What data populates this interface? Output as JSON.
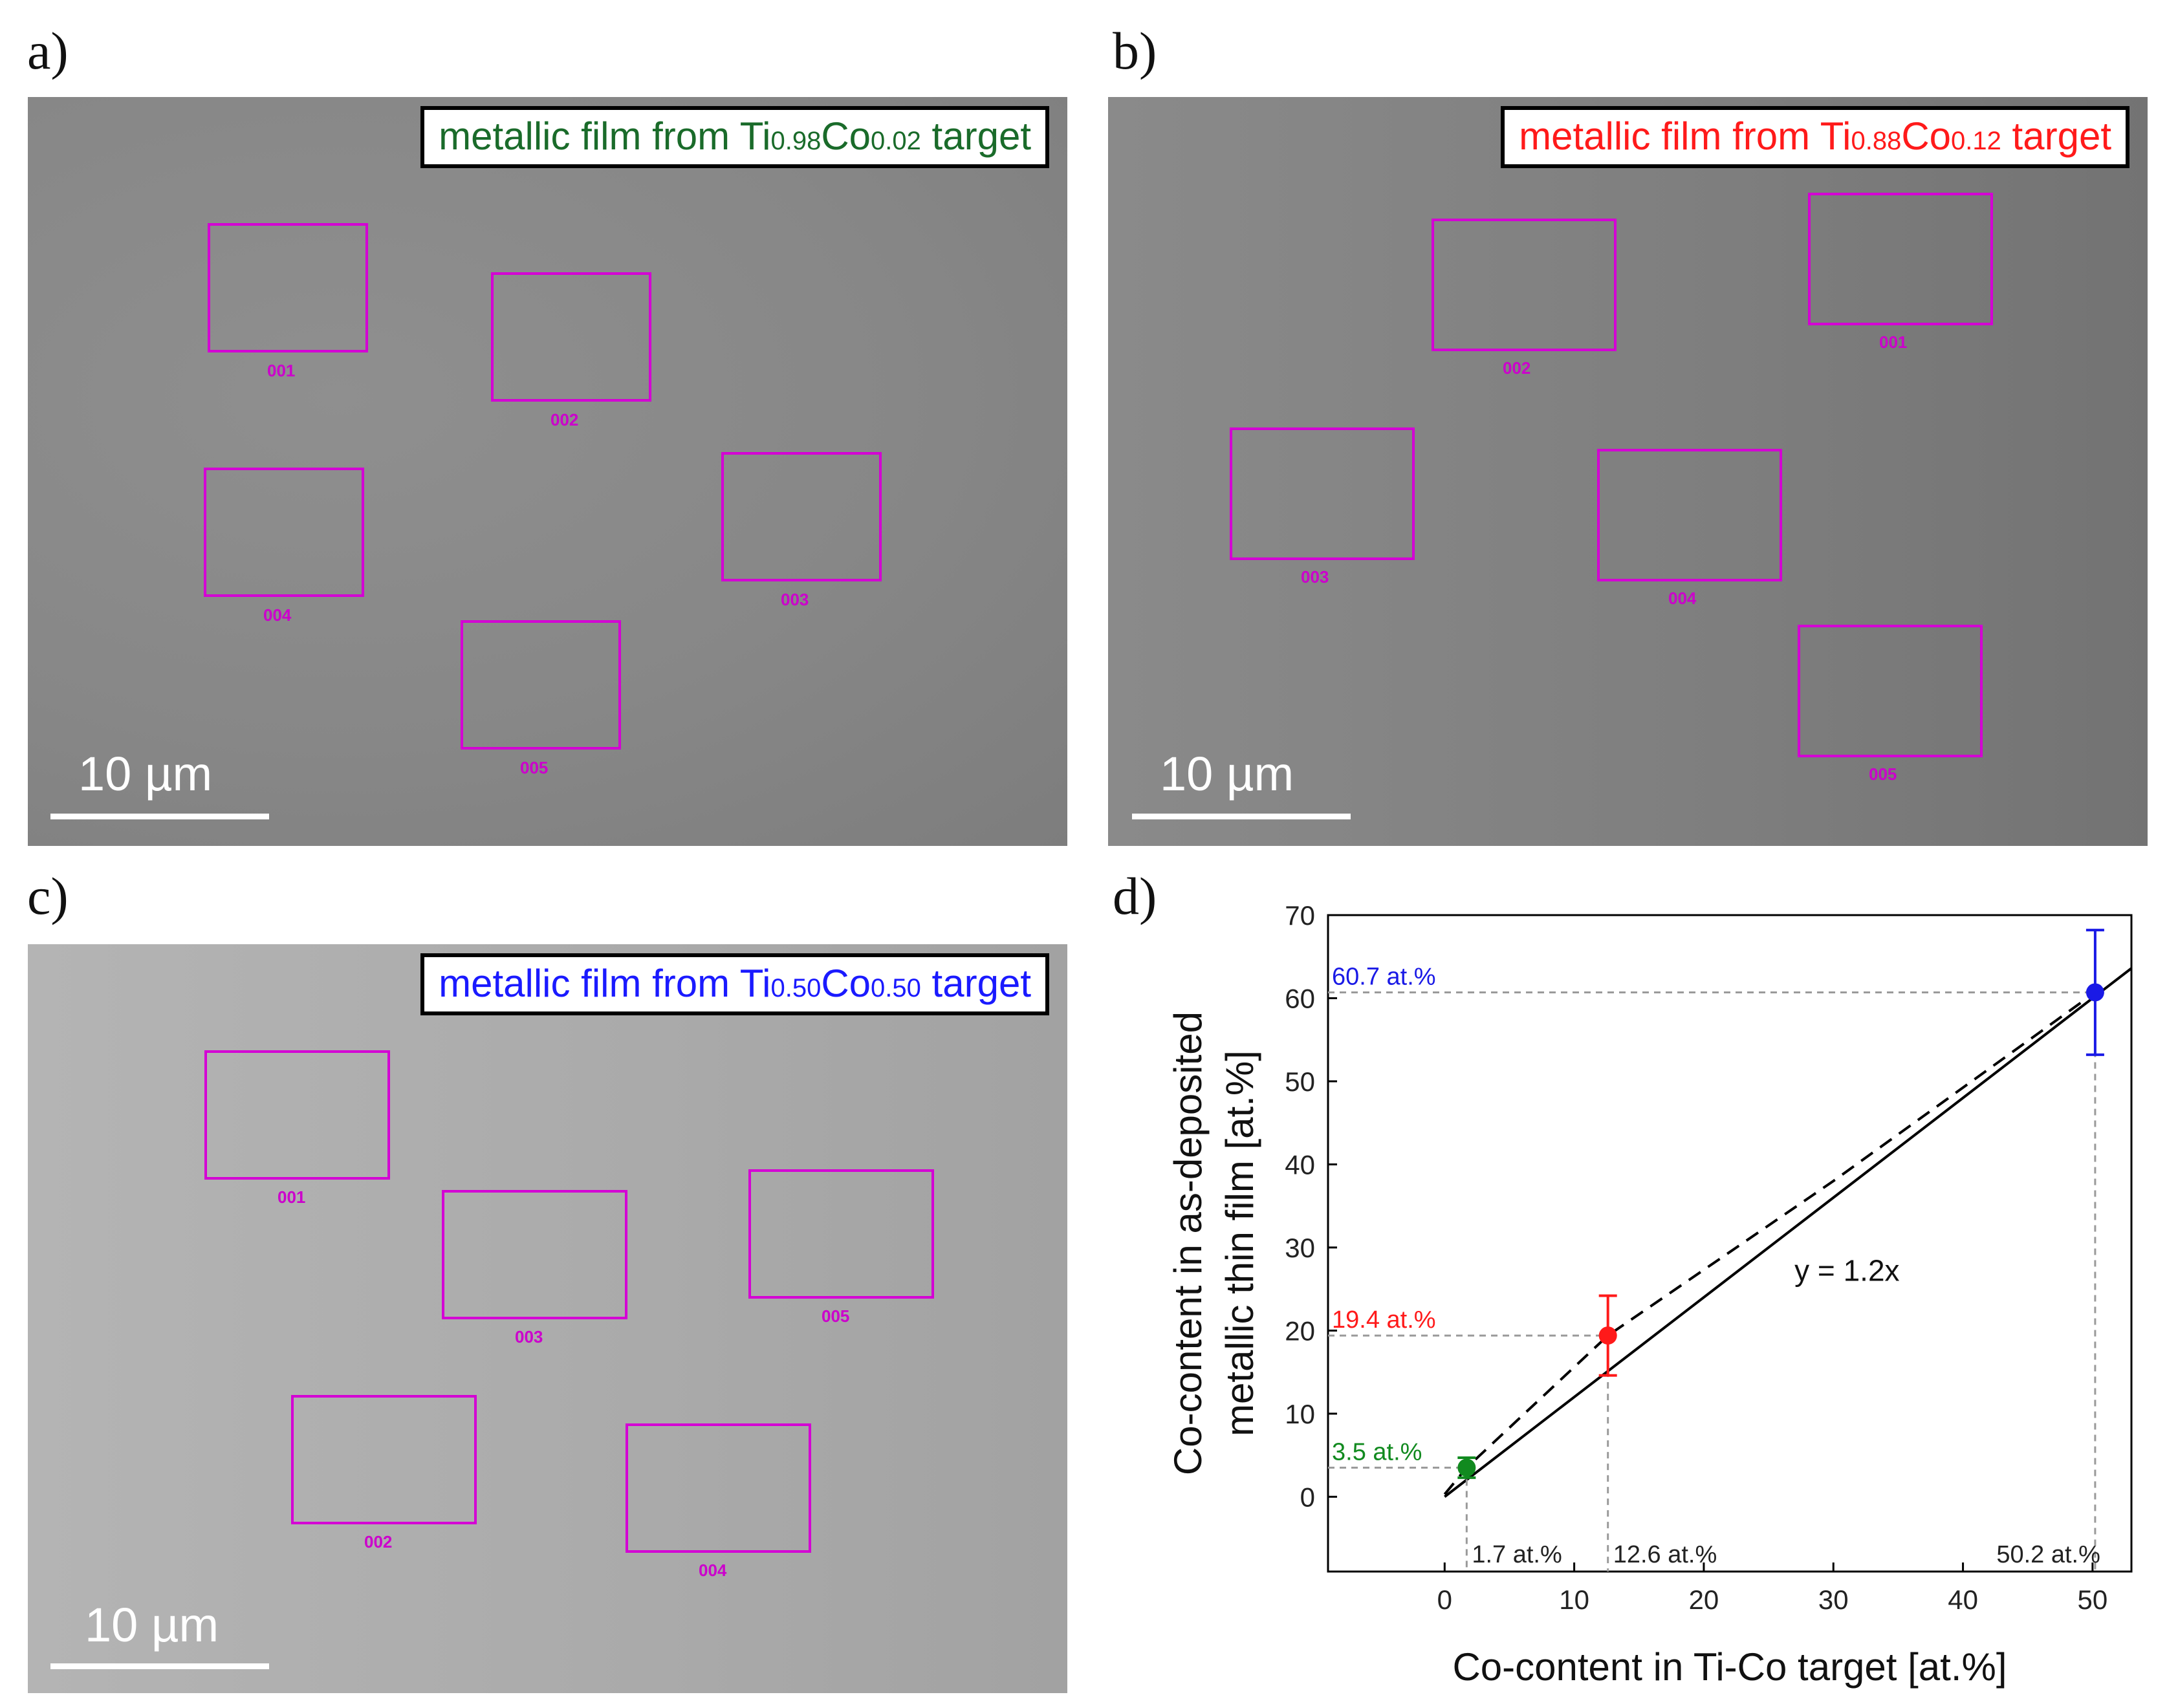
{
  "panels": {
    "a": {
      "label": "a)",
      "title_prefix": "metallic film from Ti",
      "ti_sub": "0.98",
      "co": "Co",
      "co_sub": "0.02",
      "title_suffix": " target",
      "title_color": "#1a6b2a",
      "scalebar": "10 µm",
      "regions": [
        {
          "label": "001"
        },
        {
          "label": "002"
        },
        {
          "label": "004"
        },
        {
          "label": "003"
        },
        {
          "label": "005"
        }
      ]
    },
    "b": {
      "label": "b)",
      "title_prefix": "metallic film from Ti",
      "ti_sub": "0.88",
      "co": "Co",
      "co_sub": "0.12",
      "title_suffix": " target",
      "title_color": "#ff1a1a",
      "scalebar": "10 µm",
      "regions": [
        {
          "label": "002"
        },
        {
          "label": "001"
        },
        {
          "label": "003"
        },
        {
          "label": "004"
        },
        {
          "label": "005"
        }
      ]
    },
    "c": {
      "label": "c)",
      "title_prefix": "metallic film from Ti",
      "ti_sub": "0.50",
      "co": "Co",
      "co_sub": "0.50",
      "title_suffix": " target",
      "title_color": "#1a1aff",
      "scalebar": "10 µm",
      "regions": [
        {
          "label": "001"
        },
        {
          "label": "003"
        },
        {
          "label": "005"
        },
        {
          "label": "002"
        },
        {
          "label": "004"
        }
      ]
    },
    "d": {
      "label": "d)"
    }
  },
  "colors": {
    "roi": "#d400d4",
    "green": "#118a1f",
    "red": "#ff1a1a",
    "blue": "#1a1ae6",
    "dash": "#9a9a9a"
  },
  "chart_data": {
    "type": "scatter",
    "xlabel": "Co-content in Ti-Co target [at.%]",
    "ylabel_line1": "Co-content in as-deposited",
    "ylabel_line2": "metallic thin film [at.%]",
    "xlim": [
      -9,
      53
    ],
    "ylim": [
      -9,
      70
    ],
    "xticks": [
      0,
      10,
      20,
      30,
      40,
      50
    ],
    "yticks": [
      0,
      10,
      20,
      30,
      40,
      50,
      60,
      70
    ],
    "grid": false,
    "points": [
      {
        "x": 1.7,
        "y": 3.5,
        "err": 1.2,
        "color": "#118a1f",
        "ylabel": "3.5 at.%",
        "xlabel": "1.7 at.%"
      },
      {
        "x": 12.6,
        "y": 19.4,
        "err": 4.8,
        "color": "#ff1a1a",
        "ylabel": "19.4 at.%",
        "xlabel": "12.6 at.%"
      },
      {
        "x": 50.2,
        "y": 60.7,
        "err": 7.5,
        "color": "#1a1ae6",
        "ylabel": "60.7 at.%",
        "xlabel": "50.2 at.%"
      }
    ],
    "fit": {
      "slope": 1.2,
      "x_range": [
        0,
        53
      ],
      "label": "y = 1.2x"
    },
    "dashed_curve": [
      [
        0,
        0.3
      ],
      [
        1.7,
        3.5
      ],
      [
        12.6,
        19.4
      ],
      [
        30,
        38
      ],
      [
        50.2,
        60.7
      ]
    ]
  }
}
